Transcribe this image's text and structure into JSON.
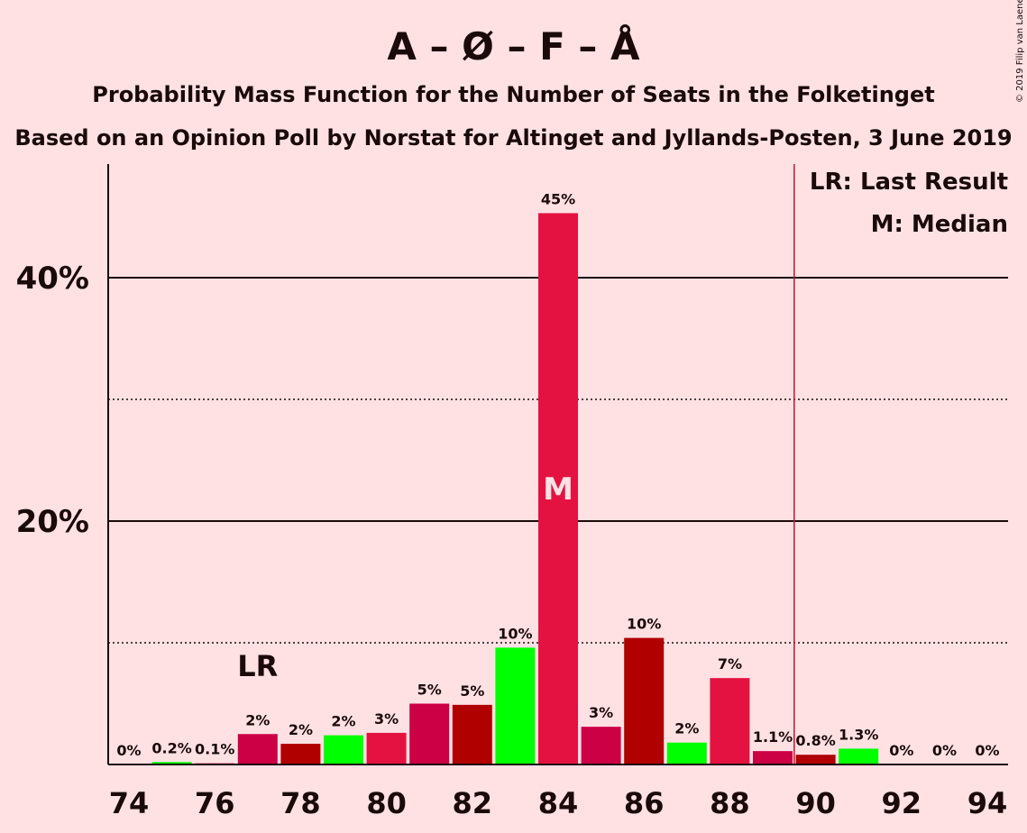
{
  "chart_data": {
    "type": "bar",
    "title": "A – Ø – F – Å",
    "subtitle": "Probability Mass Function for the Number of Seats in the Folketinget",
    "subtitle2": "Based on an Opinion Poll by Norstat for Altinget and Jyllands-Posten, 3 June 2019",
    "copyright": "© 2019 Filip van Laenen",
    "legend": [
      "LR: Last Result",
      "M: Median"
    ],
    "x": [
      74,
      75,
      76,
      77,
      78,
      79,
      80,
      81,
      82,
      83,
      84,
      85,
      86,
      87,
      88,
      89,
      90,
      91,
      92,
      93,
      94
    ],
    "values": [
      0,
      0.2,
      0.1,
      2.5,
      1.7,
      2.4,
      2.6,
      5.0,
      4.9,
      9.6,
      45.3,
      3.1,
      10.4,
      1.8,
      7.1,
      1.1,
      0.8,
      1.3,
      0,
      0,
      0
    ],
    "data_labels": [
      "0%",
      "0.2%",
      "0.1%",
      "2%",
      "2%",
      "2%",
      "3%",
      "5%",
      "5%",
      "10%",
      "45%",
      "3%",
      "10%",
      "2%",
      "7%",
      "1.1%",
      "0.8%",
      "1.3%",
      "0%",
      "0%",
      "0%"
    ],
    "bar_colors": [
      "#E41240",
      "#00FF00",
      "#E41240",
      "#CC0044",
      "#B00000",
      "#00FF00",
      "#E41240",
      "#CC0044",
      "#B00000",
      "#00FF00",
      "#E41240",
      "#CC0044",
      "#B00000",
      "#00FF00",
      "#E41240",
      "#CC0044",
      "#B00000",
      "#00FF00",
      "#E41240",
      "#CC0044",
      "#B00000"
    ],
    "x_ticks": [
      74,
      76,
      78,
      80,
      82,
      84,
      86,
      88,
      90,
      92,
      94
    ],
    "y_ticks_labeled": [
      20,
      40
    ],
    "y_tick_labels": [
      "20%",
      "40%"
    ],
    "y_gridlines_solid": [
      20,
      40
    ],
    "y_gridlines_dotted": [
      10,
      30
    ],
    "ylim": [
      0,
      49
    ],
    "last_result": {
      "seat": 77,
      "label": "LR"
    },
    "median": {
      "seat": 84,
      "label": "M"
    },
    "majority_line": 89.5,
    "majority_line_color": "#C8102E",
    "axis_color": "#1a0a0a",
    "background": "#FFE1E4"
  }
}
